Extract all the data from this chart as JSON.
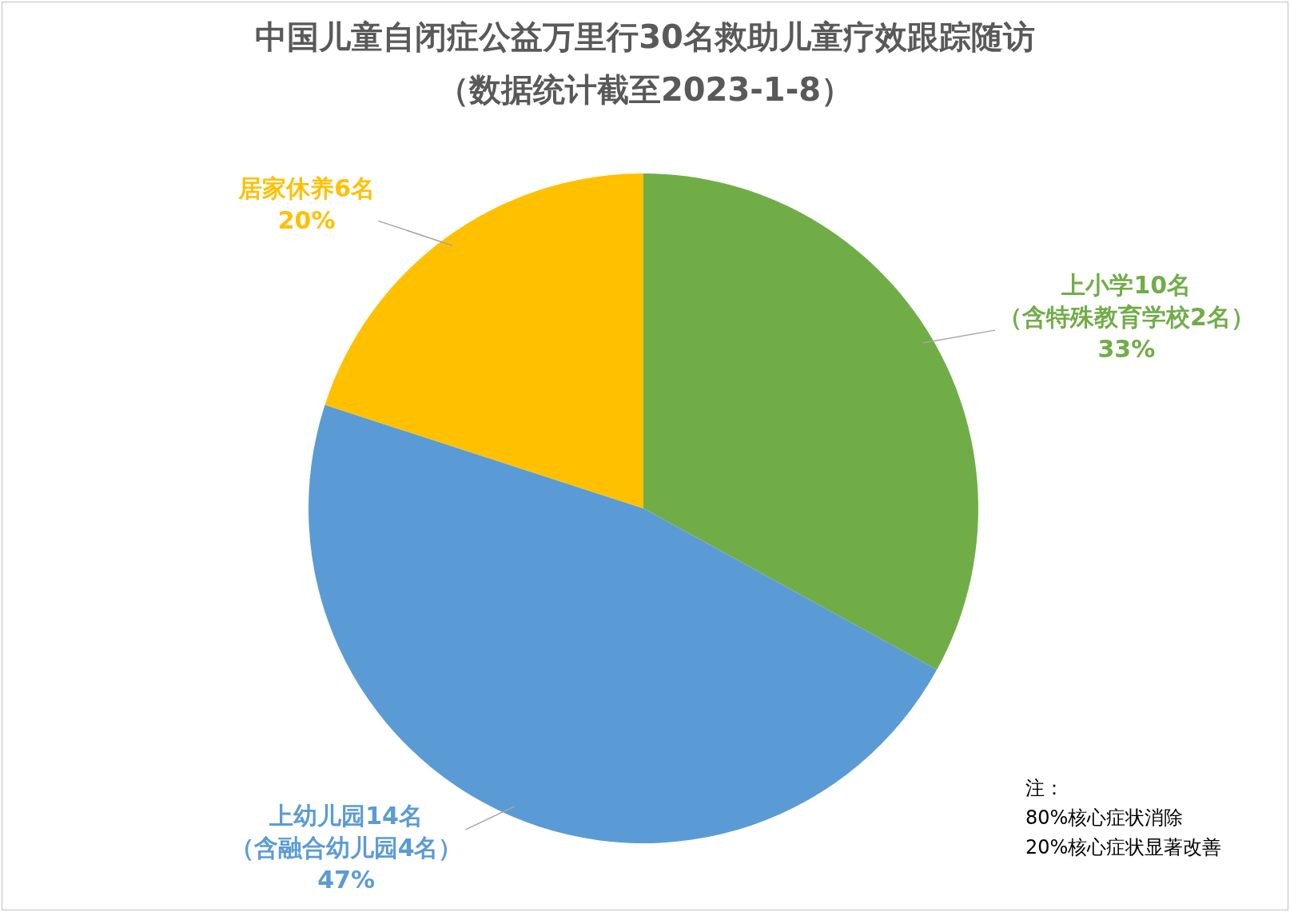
{
  "chart_data": {
    "type": "pie",
    "title": "中国儿童自闭症公益万里行30名救助儿童疗效跟踪随访",
    "subtitle": "（数据统计截至2023-1-8）",
    "categories": [
      "上小学10名（含特殊教育学校2名）",
      "上幼儿园14名（含融合幼儿园4名）",
      "居家休养6名"
    ],
    "values": [
      33,
      47,
      20
    ],
    "value_labels": [
      "33%",
      "47%",
      "20%"
    ],
    "colors": [
      "#70ad47",
      "#5b9bd5",
      "#ffc000"
    ],
    "annotations": [
      "注：\n80%核心症状消除\n20%核心症状显著改善"
    ]
  }
}
